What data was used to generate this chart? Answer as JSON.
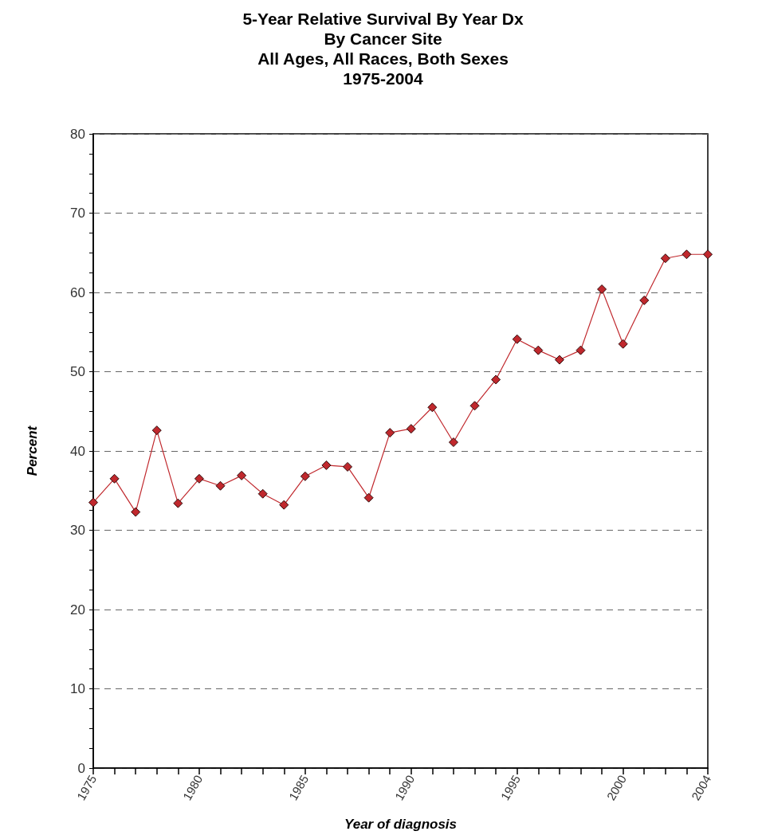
{
  "chart_data": {
    "type": "line",
    "title": "5-Year Relative Survival By Year Dx\nBy Cancer Site\nAll Ages, All Races, Both Sexes\n1975-2004",
    "xlabel": "Year of diagnosis",
    "ylabel": "Percent",
    "x": [
      1975,
      1976,
      1977,
      1978,
      1979,
      1980,
      1981,
      1982,
      1983,
      1984,
      1985,
      1986,
      1987,
      1988,
      1989,
      1990,
      1991,
      1992,
      1993,
      1994,
      1995,
      1996,
      1997,
      1998,
      1999,
      2000,
      2001,
      2002,
      2003,
      2004
    ],
    "series": [
      {
        "color": "#c0282d",
        "values": [
          33.5,
          36.5,
          32.3,
          42.6,
          33.4,
          36.5,
          35.6,
          36.9,
          34.6,
          33.2,
          36.8,
          38.2,
          38.0,
          34.1,
          42.3,
          42.8,
          45.5,
          41.1,
          45.7,
          49.0,
          54.1,
          52.7,
          51.5,
          52.7,
          60.4,
          53.5,
          59.0,
          64.3,
          64.8,
          64.8
        ]
      }
    ],
    "xlim": [
      1975,
      2004
    ],
    "xticks": [
      1975,
      {
        "value": 1976,
        "label": null
      },
      {
        "value": 1977,
        "label": null
      },
      {
        "value": 1978,
        "label": null
      },
      {
        "value": 1979,
        "label": null
      },
      1980,
      {
        "value": 1981,
        "label": null
      },
      {
        "value": 1982,
        "label": null
      },
      {
        "value": 1983,
        "label": null
      },
      {
        "value": 1984,
        "label": null
      },
      1985,
      {
        "value": 1986,
        "label": null
      },
      {
        "value": 1987,
        "label": null
      },
      {
        "value": 1988,
        "label": null
      },
      {
        "value": 1989,
        "label": null
      },
      1990,
      {
        "value": 1991,
        "label": null
      },
      {
        "value": 1992,
        "label": null
      },
      {
        "value": 1993,
        "label": null
      },
      {
        "value": 1994,
        "label": null
      },
      1995,
      {
        "value": 1996,
        "label": null
      },
      {
        "value": 1997,
        "label": null
      },
      {
        "value": 1998,
        "label": null
      },
      {
        "value": 1999,
        "label": null
      },
      2000,
      {
        "value": 2001,
        "label": null
      },
      {
        "value": 2002,
        "label": null
      },
      {
        "value": 2003,
        "label": null
      },
      2004
    ],
    "ylim": [
      0,
      80
    ],
    "yticks": [
      0,
      {
        "value": 2.5,
        "label": null
      },
      {
        "value": 5,
        "label": null
      },
      {
        "value": 7.5,
        "label": null
      },
      10,
      {
        "value": 12.5,
        "label": null
      },
      {
        "value": 15,
        "label": null
      },
      {
        "value": 17.5,
        "label": null
      },
      20,
      {
        "value": 22.5,
        "label": null
      },
      {
        "value": 25,
        "label": null
      },
      {
        "value": 27.5,
        "label": null
      },
      30,
      {
        "value": 32.5,
        "label": null
      },
      {
        "value": 35,
        "label": null
      },
      {
        "value": 37.5,
        "label": null
      },
      40,
      {
        "value": 42.5,
        "label": null
      },
      {
        "value": 45,
        "label": null
      },
      {
        "value": 47.5,
        "label": null
      },
      50,
      {
        "value": 52.5,
        "label": null
      },
      {
        "value": 55,
        "label": null
      },
      {
        "value": 57.5,
        "label": null
      },
      60,
      {
        "value": 62.5,
        "label": null
      },
      {
        "value": 65,
        "label": null
      },
      {
        "value": 67.5,
        "label": null
      },
      70,
      {
        "value": 72.5,
        "label": null
      },
      {
        "value": 75,
        "label": null
      },
      {
        "value": 77.5,
        "label": null
      },
      80
    ],
    "grid": "y",
    "marker": "diamond",
    "line_style": "solid"
  }
}
